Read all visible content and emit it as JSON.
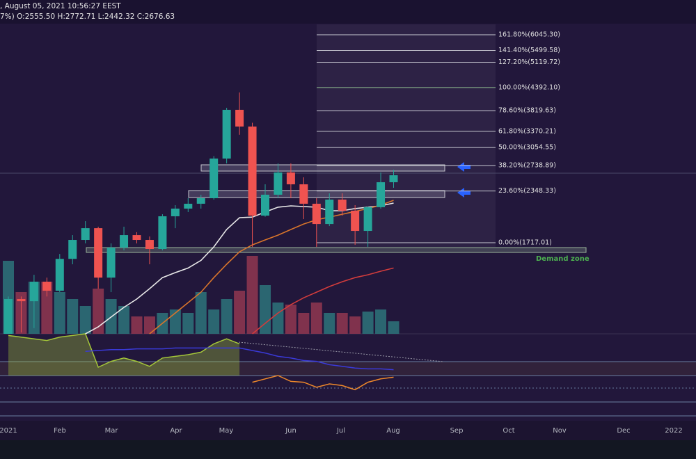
{
  "header": {
    "line1": ", August 05, 2021 10:56:27 EEST",
    "line2": "7%) O:2555.50 H:2772.71 L:2442.32 C:2676.63"
  },
  "chart_data": {
    "type": "candlestick",
    "log_scale": true,
    "up_color": "#26a69a",
    "down_color": "#ef5350",
    "candles": {
      "open": [
        989,
        1221,
        1205,
        1356,
        1284,
        1557,
        1746,
        1875,
        1390,
        1667,
        1798,
        1746,
        1653,
        2015,
        2111,
        2174,
        2248,
        2858,
        3838,
        3469,
        2023,
        2296,
        2627,
        2445,
        2174,
        1923,
        2229,
        2084,
        1844,
        2129,
        2476
      ],
      "high": [
        1240,
        1240,
        1414,
        1390,
        1604,
        1798,
        1956,
        1892,
        1710,
        1892,
        1830,
        1783,
        2040,
        2155,
        2248,
        2296,
        2900,
        3886,
        4264,
        3550,
        2445,
        2775,
        2775,
        2551,
        2248,
        2315,
        2315,
        2155,
        2137,
        2627,
        2672
      ],
      "low": [
        989,
        997,
        1024,
        1240,
        1273,
        1507,
        1710,
        1300,
        1273,
        1639,
        1710,
        1507,
        1639,
        1875,
        2067,
        2111,
        2229,
        2775,
        3300,
        1674,
        2010,
        2248,
        2248,
        1981,
        1674,
        1899,
        2023,
        1695,
        1674,
        2111,
        2395
      ],
      "close": [
        1221,
        1205,
        1356,
        1284,
        1557,
        1746,
        1875,
        1390,
        1667,
        1798,
        1746,
        1653,
        2015,
        2111,
        2174,
        2248,
        2858,
        3838,
        3469,
        2023,
        2296,
        2627,
        2445,
        2174,
        1923,
        2229,
        2084,
        1844,
        2129,
        2476,
        2583
      ]
    },
    "volume": [
      105,
      60,
      75,
      75,
      60,
      50,
      40,
      65,
      50,
      40,
      25,
      25,
      30,
      35,
      30,
      60,
      35,
      50,
      62,
      112,
      70,
      45,
      42,
      30,
      45,
      30,
      30,
      25,
      32,
      35,
      18
    ],
    "moving_averages": [
      {
        "color": "#e8e8e8",
        "values": [
          null,
          null,
          null,
          null,
          null,
          null,
          989,
          1032,
          1095,
          1161,
          1221,
          1300,
          1390,
          1433,
          1473,
          1543,
          1674,
          1860,
          1998,
          2005,
          2067,
          2129,
          2146,
          2137,
          2129,
          2084,
          2084,
          2111,
          2129,
          2146,
          2183
        ]
      },
      {
        "color": "#d9752b",
        "values": [
          null,
          null,
          null,
          null,
          null,
          null,
          null,
          null,
          null,
          null,
          null,
          989,
          1054,
          1122,
          1195,
          1273,
          1390,
          1507,
          1625,
          1695,
          1746,
          1798,
          1860,
          1923,
          1973,
          2005,
          2040,
          2075,
          2111,
          2155,
          2220
        ]
      },
      {
        "color": "#d23c3c",
        "values": [
          null,
          null,
          null,
          null,
          null,
          null,
          null,
          null,
          null,
          null,
          null,
          null,
          null,
          null,
          null,
          null,
          null,
          null,
          null,
          989,
          1054,
          1122,
          1180,
          1230,
          1273,
          1317,
          1356,
          1390,
          1414,
          1445,
          1473
        ]
      }
    ],
    "oscillator": [
      {
        "color": "#a4c639",
        "area": true,
        "values": [
          98,
          96,
          94,
          92,
          96,
          98,
          100,
          60,
          67,
          71,
          67,
          61,
          71,
          73,
          75,
          78,
          88,
          94,
          88,
          null,
          null,
          null,
          null,
          null,
          null,
          null,
          null,
          null,
          null,
          null,
          null
        ]
      },
      {
        "color": "#f0892a",
        "values": [
          null,
          null,
          null,
          null,
          null,
          null,
          null,
          null,
          null,
          null,
          null,
          null,
          null,
          null,
          null,
          null,
          null,
          null,
          null,
          42,
          46,
          50,
          43,
          42,
          36,
          40,
          38,
          33,
          42,
          46,
          48
        ]
      },
      {
        "color": "#3a3ad8",
        "values": [
          null,
          null,
          null,
          null,
          null,
          null,
          79,
          80,
          81,
          81,
          82,
          82,
          82,
          83,
          83,
          83,
          83,
          83,
          83,
          80,
          77,
          73,
          71,
          68,
          67,
          63,
          61,
          59,
          58,
          58,
          57
        ]
      }
    ],
    "fib_levels": [
      {
        "value": 6045.3,
        "label": "161.80%(6045.30)"
      },
      {
        "value": 5499.58,
        "label": "141.40%(5499.58)"
      },
      {
        "value": 5119.72,
        "label": "127.20%(5119.72)"
      },
      {
        "value": 4392.1,
        "label": "100.00%(4392.10)"
      },
      {
        "value": 3819.63,
        "label": "78.60%(3819.63)"
      },
      {
        "value": 3370.21,
        "label": "61.80%(3370.21)"
      },
      {
        "value": 3054.55,
        "label": "50.00%(3054.55)"
      },
      {
        "value": 2738.89,
        "label": "38.20%(2738.89)"
      },
      {
        "value": 2348.33,
        "label": "23.60%(2348.33)"
      },
      {
        "value": 1717.01,
        "label": "0.00%(1717.01)"
      }
    ],
    "annotation": "Demand zone",
    "x_labels": [
      "2021",
      "Feb",
      "Mar",
      "Apr",
      "May",
      "Jun",
      "Jul",
      "Aug",
      "Sep",
      "Oct",
      "Nov",
      "Dec",
      "2022"
    ]
  }
}
